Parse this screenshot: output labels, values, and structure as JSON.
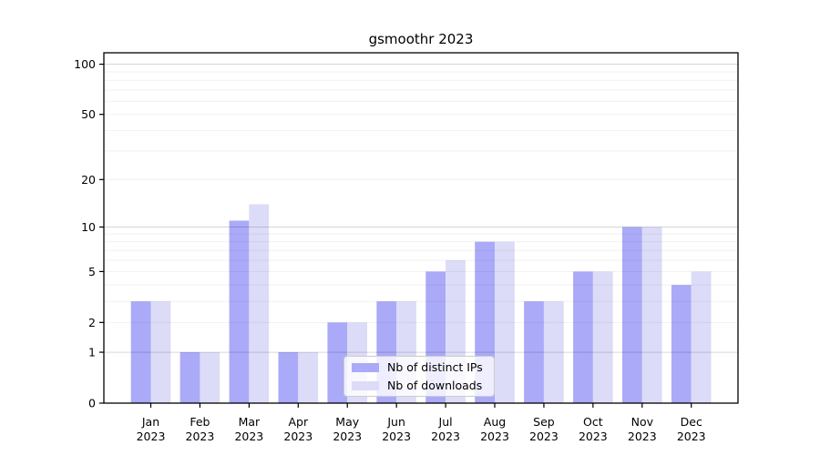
{
  "chart_data": {
    "type": "bar",
    "title": "gsmoothr 2023",
    "scale": "log1p",
    "categories": [
      "Jan",
      "Feb",
      "Mar",
      "Apr",
      "May",
      "Jun",
      "Jul",
      "Aug",
      "Sep",
      "Oct",
      "Nov",
      "Dec"
    ],
    "year": "2023",
    "series": [
      {
        "name": "Nb of distinct IPs",
        "color": "#aaaaf8",
        "values": [
          3,
          1,
          11,
          1,
          2,
          3,
          5,
          8,
          3,
          5,
          10,
          4
        ]
      },
      {
        "name": "Nb of downloads",
        "color": "#dcdcf8",
        "values": [
          3,
          1,
          14,
          1,
          2,
          3,
          6,
          8,
          3,
          5,
          10,
          5
        ]
      }
    ],
    "xlabel": "",
    "ylabel": "",
    "y_ticks": [
      100,
      50,
      20,
      10,
      5,
      2,
      1,
      0
    ],
    "y_major_grid": [
      1,
      10,
      100
    ],
    "y_minor_grid": [
      2,
      3,
      4,
      5,
      6,
      7,
      8,
      9,
      20,
      30,
      40,
      50,
      60,
      70,
      80,
      90
    ],
    "ylim": [
      0,
      118
    ],
    "grid": "on",
    "legend_position": "lower-center",
    "colors": {
      "spine": "#000000",
      "grid_major": "rgba(0,0,0,0.16)",
      "grid_minor": "rgba(0,0,0,0.055)",
      "background": "#ffffff"
    }
  }
}
